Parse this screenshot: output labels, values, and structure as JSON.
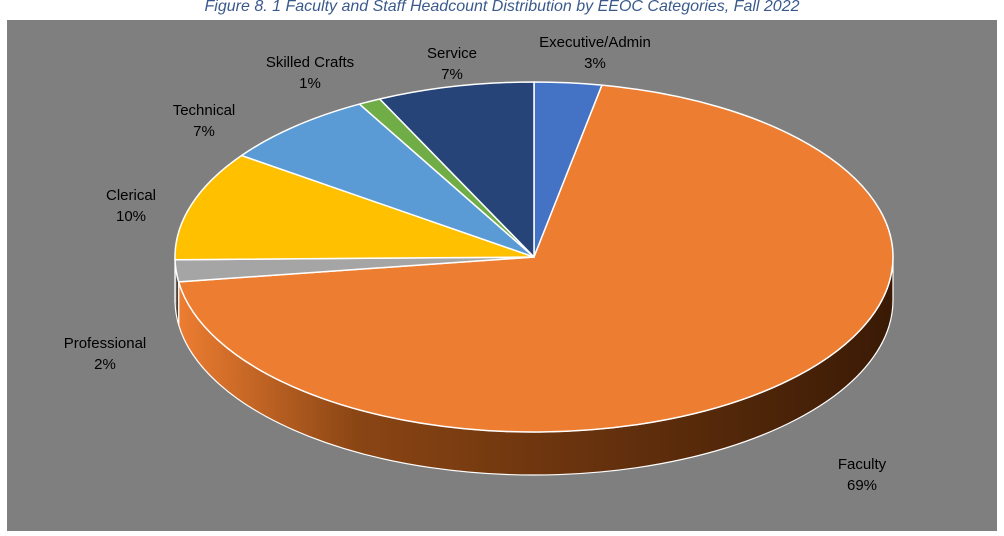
{
  "figure": {
    "caption": "Figure 8. 1 Faculty and Staff Headcount Distribution by EEOC Categories, Fall 2022"
  },
  "chart_data": {
    "type": "pie",
    "title": "",
    "categories": [
      "Executive/Admin",
      "Faculty",
      "Professional",
      "Clerical",
      "Technical",
      "Skilled Crafts",
      "Service"
    ],
    "values": [
      3,
      69,
      2,
      10,
      7,
      1,
      7
    ],
    "value_labels": [
      "3%",
      "69%",
      "2%",
      "10%",
      "7%",
      "1%",
      "7%"
    ],
    "colors": [
      "#4472c4",
      "#ed7d31",
      "#a5a5a5",
      "#ffc000",
      "#5b9bd5",
      "#70ad47",
      "#264478"
    ],
    "side_colors": [
      "#2d4f8c",
      "#8a4514",
      "#6e6e6e",
      "#a67d00",
      "#3c6d99",
      "#4a7530",
      "#17294a"
    ],
    "background": "#7f7f7f",
    "legend": "none",
    "style": "3d"
  }
}
